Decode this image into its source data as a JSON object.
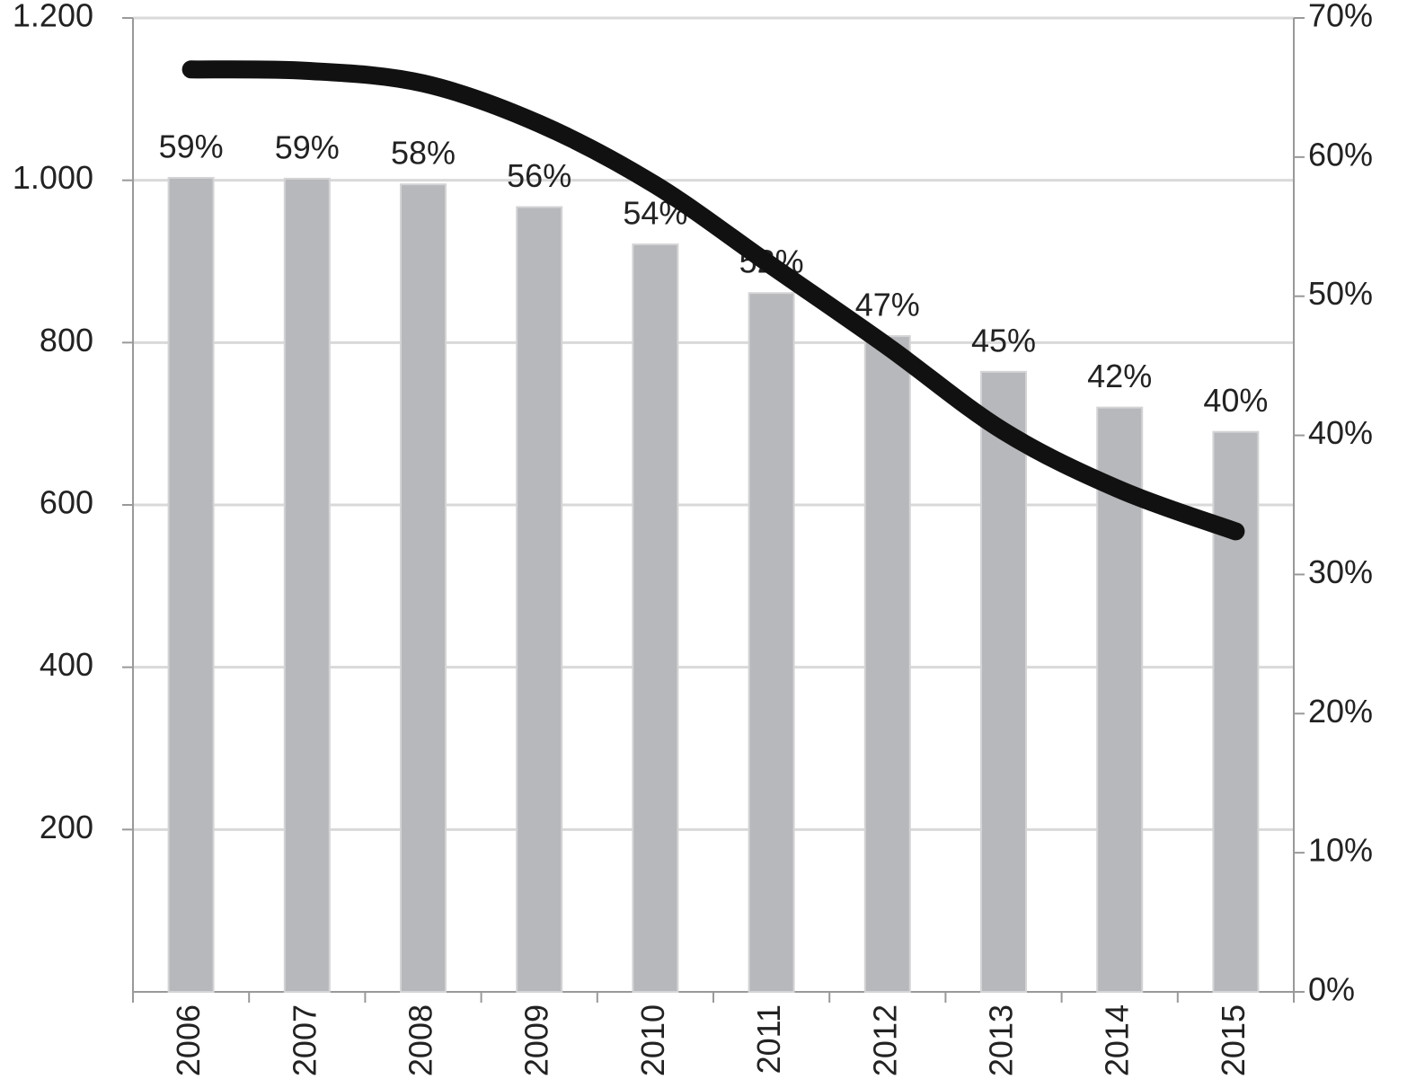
{
  "chart_data": {
    "type": "bar-line",
    "categories": [
      "2006",
      "2007",
      "2008",
      "2009",
      "2010",
      "2011",
      "2012",
      "2013",
      "2014",
      "2015"
    ],
    "series": [
      {
        "type": "bar",
        "color": "#b7b8bb",
        "values": [
          1003,
          1002,
          995,
          967,
          921,
          861,
          808,
          764,
          720,
          690
        ],
        "data_labels": [
          "59%",
          "59%",
          "58%",
          "56%",
          "54%",
          "52%",
          "47%",
          "45%",
          "42%",
          "40%"
        ]
      },
      {
        "type": "line",
        "axis": "y2",
        "color": "#111111",
        "values": [
          66.3,
          66.2,
          65.3,
          62.4,
          58.0,
          52.2,
          46.4,
          40.3,
          36.1,
          33.1
        ]
      }
    ],
    "ylim": [
      0,
      1200
    ],
    "yticks": [
      200,
      400,
      600,
      800,
      {
        "value": 1000,
        "label": "1.000"
      },
      {
        "value": 1200,
        "label": "1.200"
      }
    ],
    "y2lim": [
      0,
      70
    ],
    "y2ticks": [
      {
        "value": 0,
        "label": "0%"
      },
      {
        "value": 10,
        "label": "10%"
      },
      {
        "value": 20,
        "label": "20%"
      },
      {
        "value": 30,
        "label": "30%"
      },
      {
        "value": 40,
        "label": "40%"
      },
      {
        "value": 50,
        "label": "50%"
      },
      {
        "value": 60,
        "label": "60%"
      },
      {
        "value": 70,
        "label": "70%"
      }
    ],
    "grid": true
  }
}
